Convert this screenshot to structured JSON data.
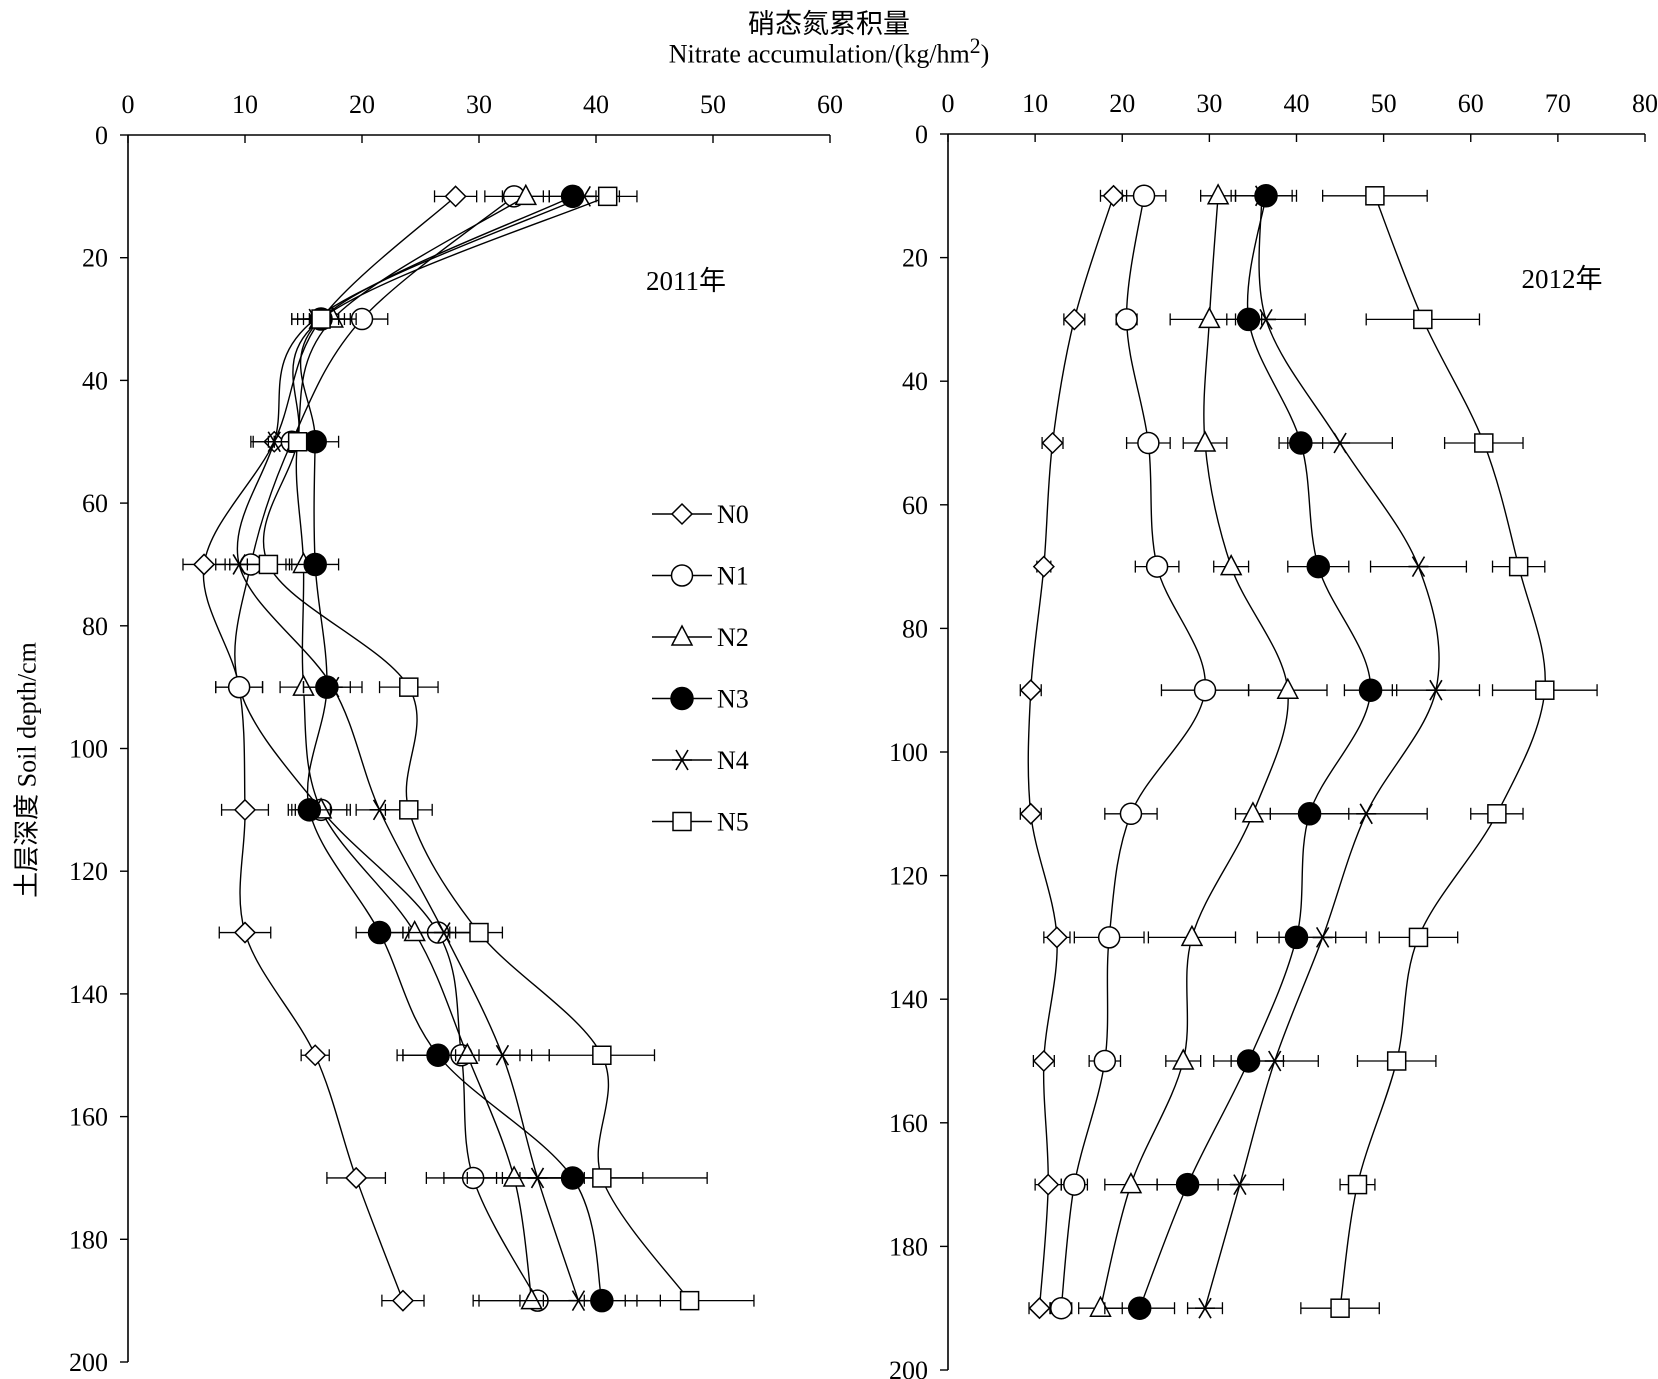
{
  "title_cn": "硝态氮累积量",
  "title_en": "Nitrate accumulation/(kg/hm",
  "title_en_sup": "2",
  "title_en_tail": ")",
  "ylabel": "土层深度  Soil depth/cm",
  "legend": [
    "N0",
    "N1",
    "N2",
    "N3",
    "N4",
    "N5"
  ],
  "chart_data": [
    {
      "type": "line",
      "title": "2011年",
      "xlim": [
        0,
        60
      ],
      "ylim": [
        0,
        200
      ],
      "y_inverted": true,
      "x_ticks": [
        0,
        10,
        20,
        30,
        40,
        50,
        60
      ],
      "y_ticks": [
        0,
        20,
        40,
        60,
        80,
        100,
        120,
        140,
        160,
        180,
        200
      ],
      "depths": [
        10,
        30,
        50,
        70,
        90,
        110,
        130,
        150,
        170,
        190
      ],
      "series": [
        {
          "name": "N0",
          "marker": "diamond",
          "x": [
            28,
            16.5,
            12.5,
            6.5,
            9.5,
            10,
            10,
            16,
            19.5,
            23.5
          ],
          "err": [
            1.8,
            1.5,
            1.8,
            1.8,
            2,
            2,
            2.2,
            1.2,
            2.5,
            1.8
          ]
        },
        {
          "name": "N1",
          "marker": "circle-open",
          "x": [
            33,
            20,
            14,
            10.5,
            9.5,
            16.5,
            26.5,
            28.5,
            29.5,
            35
          ],
          "err": [
            2.5,
            2.2,
            2,
            1.8,
            2,
            2.2,
            3,
            5,
            4,
            5.5
          ]
        },
        {
          "name": "N2",
          "marker": "triangle-open",
          "x": [
            34,
            17.5,
            14.5,
            15,
            15,
            16.5,
            24.5,
            29,
            33,
            34.5
          ],
          "err": [
            2,
            2,
            2,
            1.5,
            2,
            2.5,
            3,
            5.5,
            6,
            4.5
          ]
        },
        {
          "name": "N3",
          "marker": "circle-filled",
          "x": [
            38,
            16.5,
            16,
            16,
            17,
            15.5,
            21.5,
            26.5,
            38,
            40.5
          ],
          "err": [
            2,
            2,
            2,
            2,
            2,
            1.8,
            2,
            3.5,
            6,
            5
          ]
        },
        {
          "name": "N4",
          "marker": "asterisk",
          "x": [
            39,
            16,
            12.5,
            9.5,
            17.5,
            21.5,
            27,
            32,
            35,
            38.5
          ],
          "err": [
            3,
            2,
            2,
            2,
            2.5,
            2,
            3,
            4,
            6,
            5
          ]
        },
        {
          "name": "N5",
          "marker": "square-open",
          "x": [
            41,
            16.5,
            14.5,
            12,
            24,
            24,
            30,
            40.5,
            40.5,
            48
          ],
          "err": [
            2.5,
            2.5,
            2,
            1.8,
            2.5,
            2,
            2,
            4.5,
            9,
            5.5
          ]
        }
      ]
    },
    {
      "type": "line",
      "title": "2012年",
      "xlim": [
        0,
        80
      ],
      "ylim": [
        0,
        200
      ],
      "y_inverted": true,
      "x_ticks": [
        0,
        10,
        20,
        30,
        40,
        50,
        60,
        70,
        80
      ],
      "y_ticks": [
        0,
        20,
        40,
        60,
        80,
        100,
        120,
        140,
        160,
        180,
        200
      ],
      "depths": [
        10,
        30,
        50,
        70,
        90,
        110,
        130,
        150,
        170,
        190
      ],
      "series": [
        {
          "name": "N0",
          "marker": "diamond",
          "x": [
            19,
            14.5,
            12,
            11,
            9.5,
            9.5,
            12.5,
            11,
            11.5,
            10.5
          ],
          "err": [
            1.5,
            1.2,
            1.2,
            0.8,
            1.2,
            1.2,
            1.5,
            1.2,
            1.5,
            1.2
          ]
        },
        {
          "name": "N1",
          "marker": "circle-open",
          "x": [
            22.5,
            20.5,
            23,
            24,
            29.5,
            21,
            18.5,
            18,
            14.5,
            13
          ],
          "err": [
            2.5,
            1.2,
            2.5,
            2.5,
            5,
            3,
            4,
            1.8,
            1.5,
            1.2
          ]
        },
        {
          "name": "N2",
          "marker": "triangle-open",
          "x": [
            31,
            30,
            29.5,
            32.5,
            39,
            35,
            28,
            27,
            21,
            17.5
          ],
          "err": [
            2,
            4.5,
            2.5,
            2,
            4.5,
            2,
            5,
            2,
            3,
            2.5
          ]
        },
        {
          "name": "N3",
          "marker": "circle-filled",
          "x": [
            36.5,
            34.5,
            40.5,
            42.5,
            48.5,
            41.5,
            40,
            34.5,
            27.5,
            22
          ],
          "err": [
            3.5,
            1.5,
            2.5,
            3.5,
            3,
            4.5,
            4.5,
            4,
            3.5,
            4
          ]
        },
        {
          "name": "N4",
          "marker": "asterisk",
          "x": [
            36,
            36.5,
            45,
            54,
            56,
            48,
            43,
            37.5,
            33.5,
            29.5
          ],
          "err": [
            3.5,
            4.5,
            6,
            5.5,
            5,
            7,
            5,
            5,
            5,
            2
          ]
        },
        {
          "name": "N5",
          "marker": "square-open",
          "x": [
            49,
            54.5,
            61.5,
            65.5,
            68.5,
            63,
            54,
            51.5,
            47,
            45
          ],
          "err": [
            6,
            6.5,
            4.5,
            3,
            6,
            3,
            4.5,
            4.5,
            2,
            4.5
          ]
        }
      ]
    }
  ]
}
